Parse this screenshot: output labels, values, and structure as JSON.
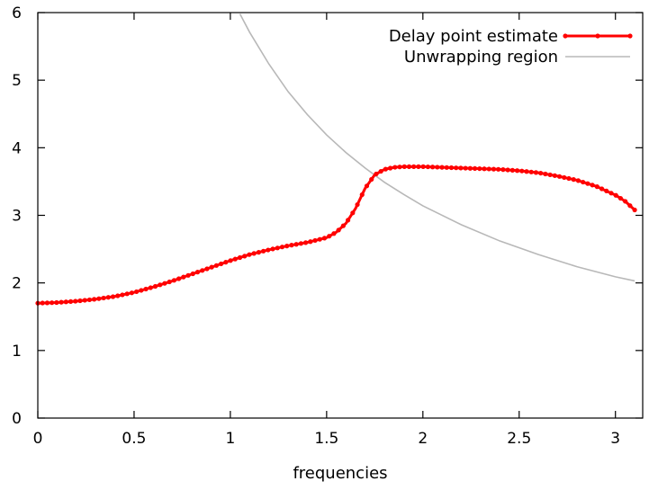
{
  "chart_data": {
    "type": "line",
    "title": "",
    "xlabel": "frequencies",
    "ylabel": "",
    "xlim": [
      0,
      3.1416
    ],
    "ylim": [
      0,
      6
    ],
    "xticks": [
      "0",
      "0.5",
      "1",
      "1.5",
      "2",
      "2.5",
      "3"
    ],
    "yticks": [
      "0",
      "1",
      "2",
      "3",
      "4",
      "5",
      "6"
    ],
    "grid": false,
    "legend_position": "top-right",
    "series": [
      {
        "name": "Delay point estimate",
        "color": "#ff0000",
        "style": "line-with-points",
        "x": [
          0.0,
          0.1,
          0.2,
          0.3,
          0.4,
          0.5,
          0.6,
          0.7,
          0.8,
          0.9,
          1.0,
          1.1,
          1.2,
          1.3,
          1.4,
          1.5,
          1.55,
          1.6,
          1.65,
          1.7,
          1.75,
          1.8,
          1.85,
          1.9,
          2.0,
          2.1,
          2.2,
          2.3,
          2.4,
          2.5,
          2.6,
          2.7,
          2.8,
          2.9,
          3.0,
          3.05,
          3.1
        ],
        "y": [
          1.7,
          1.71,
          1.73,
          1.76,
          1.8,
          1.86,
          1.94,
          2.03,
          2.13,
          2.23,
          2.33,
          2.42,
          2.49,
          2.55,
          2.6,
          2.67,
          2.75,
          2.88,
          3.1,
          3.4,
          3.6,
          3.68,
          3.71,
          3.72,
          3.72,
          3.71,
          3.7,
          3.69,
          3.68,
          3.66,
          3.63,
          3.58,
          3.52,
          3.43,
          3.3,
          3.21,
          3.08
        ]
      },
      {
        "name": "Unwrapping region",
        "color": "#b8b8b8",
        "style": "line",
        "x": [
          1.05,
          1.1,
          1.2,
          1.3,
          1.4,
          1.5,
          1.6,
          1.7,
          1.8,
          1.9,
          2.0,
          2.2,
          2.4,
          2.6,
          2.8,
          3.0,
          3.1
        ],
        "y": [
          5.98,
          5.71,
          5.24,
          4.83,
          4.49,
          4.19,
          3.93,
          3.7,
          3.49,
          3.31,
          3.14,
          2.86,
          2.62,
          2.42,
          2.24,
          2.09,
          2.03
        ]
      }
    ]
  }
}
